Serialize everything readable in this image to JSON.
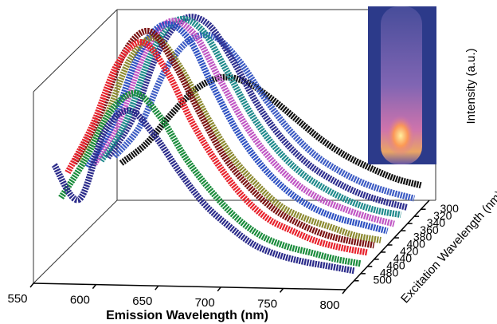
{
  "chart_data": {
    "type": "waterfall",
    "x_label": "Emission Wavelength (nm)",
    "y_label": "Intensity (a.u.)",
    "z_label": "Excitation Wavelength (nm)",
    "x": [
      560,
      580,
      600,
      620,
      640,
      660,
      680,
      700,
      720,
      740,
      760,
      780,
      800
    ],
    "xlim": [
      550,
      800
    ],
    "xticks": [
      550,
      600,
      650,
      700,
      750,
      800
    ],
    "ylim": [
      0,
      1
    ],
    "zlim": [
      500,
      300
    ],
    "zticks": [
      300,
      320,
      340,
      360,
      380,
      400,
      420,
      440,
      460,
      480,
      500
    ],
    "series": [
      {
        "z": 300,
        "color": "#111111",
        "values": [
          0.2,
          0.3,
          0.45,
          0.58,
          0.64,
          0.62,
          0.54,
          0.44,
          0.34,
          0.26,
          0.2,
          0.15,
          0.12
        ]
      },
      {
        "z": 320,
        "color": "#3d5cc4",
        "values": [
          0.27,
          0.42,
          0.7,
          0.86,
          0.88,
          0.76,
          0.58,
          0.42,
          0.3,
          0.22,
          0.16,
          0.12,
          0.09
        ]
      },
      {
        "z": 340,
        "color": "#2e2e8e",
        "values": [
          0.3,
          0.5,
          0.83,
          1.0,
          0.98,
          0.8,
          0.58,
          0.41,
          0.29,
          0.21,
          0.15,
          0.11,
          0.08
        ]
      },
      {
        "z": 360,
        "color": "#1f8a8c",
        "values": [
          0.32,
          0.52,
          0.86,
          1.03,
          0.99,
          0.79,
          0.57,
          0.4,
          0.28,
          0.2,
          0.14,
          0.1,
          0.08
        ]
      },
      {
        "z": 380,
        "color": "#c056c4",
        "values": [
          0.34,
          0.56,
          0.9,
          1.06,
          1.0,
          0.78,
          0.56,
          0.39,
          0.27,
          0.19,
          0.14,
          0.1,
          0.07
        ]
      },
      {
        "z": 400,
        "color": "#2f52c2",
        "values": [
          0.36,
          0.58,
          0.92,
          1.08,
          1.02,
          0.78,
          0.55,
          0.38,
          0.26,
          0.18,
          0.13,
          0.1,
          0.07
        ]
      },
      {
        "z": 420,
        "color": "#8c8a30",
        "values": [
          0.42,
          0.65,
          0.95,
          1.05,
          0.9,
          0.67,
          0.47,
          0.33,
          0.22,
          0.16,
          0.12,
          0.08,
          0.06
        ]
      },
      {
        "z": 440,
        "color": "#7a1212",
        "values": [
          0.45,
          0.69,
          1.01,
          1.12,
          0.96,
          0.72,
          0.5,
          0.35,
          0.24,
          0.17,
          0.12,
          0.09,
          0.07
        ]
      },
      {
        "z": 460,
        "color": "#e8222c",
        "values": [
          0.44,
          0.68,
          0.99,
          1.1,
          0.95,
          0.7,
          0.5,
          0.34,
          0.23,
          0.17,
          0.12,
          0.09,
          0.07
        ]
      },
      {
        "z": 480,
        "color": "#1b8c3c",
        "values": [
          0.35,
          0.55,
          0.79,
          0.88,
          0.76,
          0.56,
          0.4,
          0.27,
          0.18,
          0.13,
          0.1,
          0.07,
          0.05
        ]
      },
      {
        "z": 500,
        "color": "#2b2b8a",
        "values": [
          0.55,
          0.38,
          0.72,
          0.83,
          0.71,
          0.53,
          0.37,
          0.26,
          0.17,
          0.12,
          0.09,
          0.07,
          0.05
        ]
      }
    ]
  }
}
